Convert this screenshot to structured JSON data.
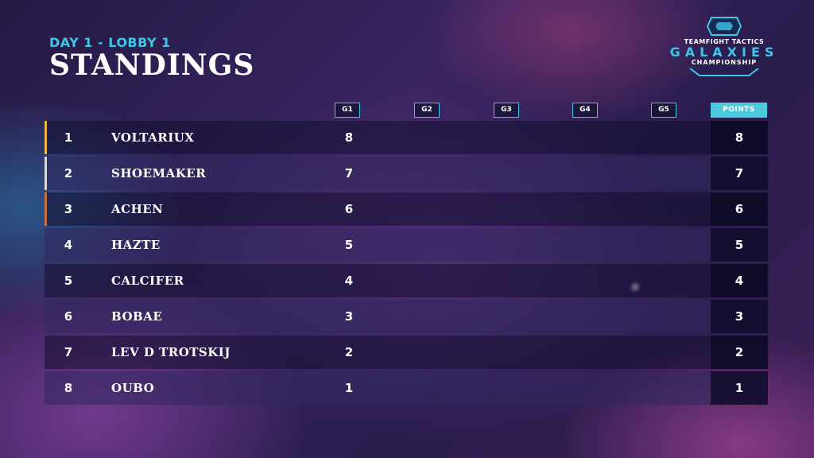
{
  "header": {
    "subtitle": "DAY 1 - LOBBY 1",
    "title": "STANDINGS"
  },
  "logo": {
    "line1": "TEAMFIGHT TACTICS",
    "line2": "GALAXIES",
    "line3": "CHAMPIONSHIP",
    "icon": "hexagon-crest-icon"
  },
  "columns": [
    "G1",
    "G2",
    "G3",
    "G4",
    "G5"
  ],
  "points_label": "POINTS",
  "colors": {
    "accent_cyan": "#3ec7e6",
    "rank1": "#e8b64a",
    "rank2": "#d8d8e0",
    "rank3": "#c8703a"
  },
  "rows": [
    {
      "rank": "1",
      "name": "VOLTARIUX",
      "g1": "8",
      "points": "8"
    },
    {
      "rank": "2",
      "name": "SHOEMAKER",
      "g1": "7",
      "points": "7"
    },
    {
      "rank": "3",
      "name": "ACHEN",
      "g1": "6",
      "points": "6"
    },
    {
      "rank": "4",
      "name": "HAZTE",
      "g1": "5",
      "points": "5"
    },
    {
      "rank": "5",
      "name": "CALCIFER",
      "g1": "4",
      "points": "4"
    },
    {
      "rank": "6",
      "name": "BOBAE",
      "g1": "3",
      "points": "3"
    },
    {
      "rank": "7",
      "name": "LEV D TROTSKIJ",
      "g1": "2",
      "points": "2"
    },
    {
      "rank": "8",
      "name": "OUBO",
      "g1": "1",
      "points": "1"
    }
  ]
}
